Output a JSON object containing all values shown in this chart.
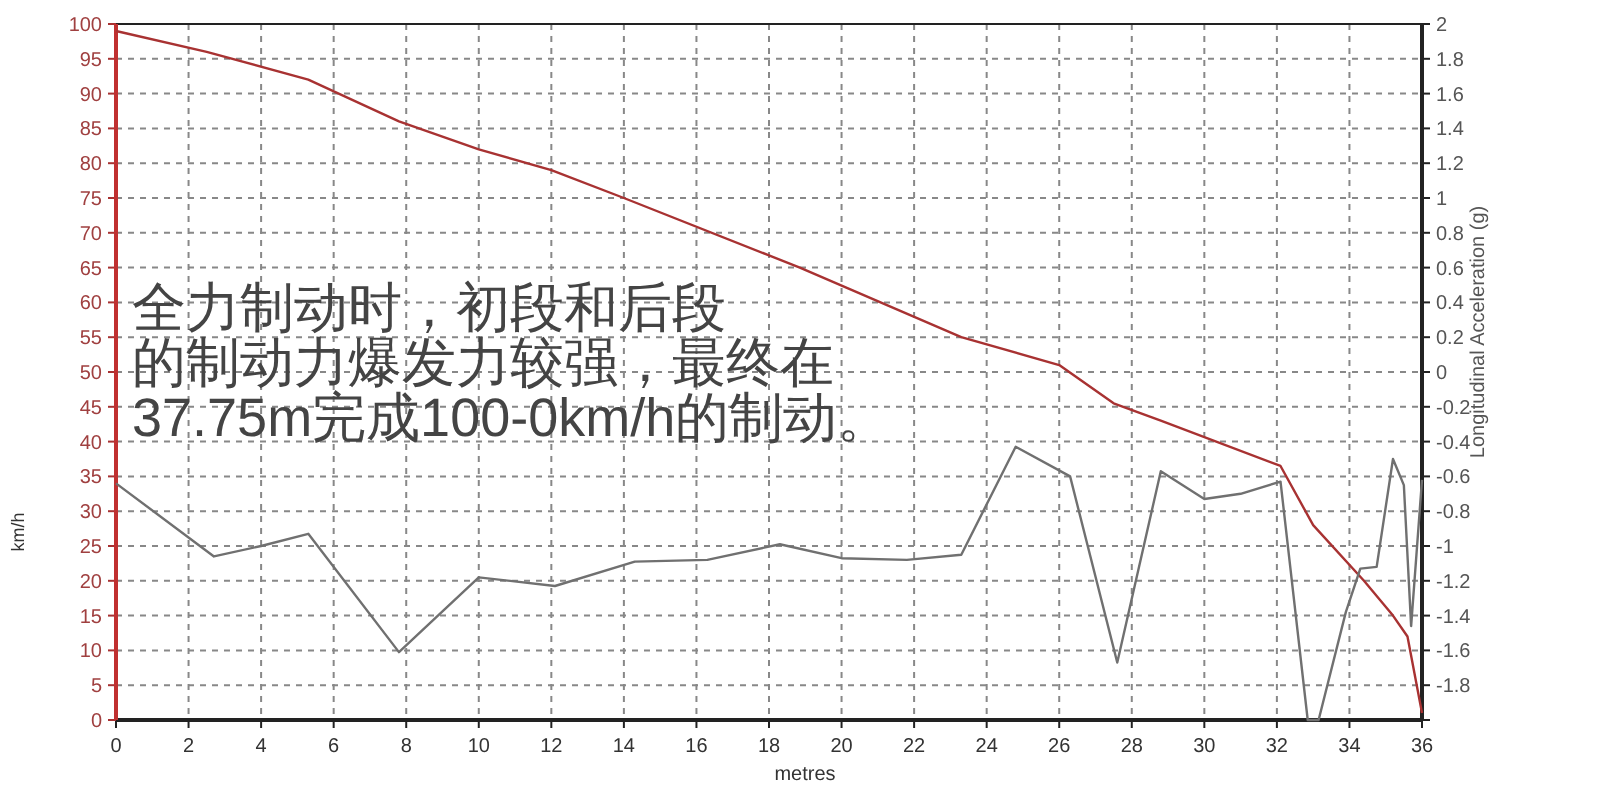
{
  "chart_data": {
    "type": "line",
    "xlabel": "metres",
    "ylabel": "km/h",
    "y2label": "Longitudinal Acceleration (g)",
    "annotations": [
      "全力制动时，初段和后段",
      "的制动力爆发力较强，最终在",
      "37.75m完成100-0km/h的制动。"
    ],
    "xlim": [
      0,
      36
    ],
    "xticks": [
      0,
      2,
      4,
      6,
      8,
      10,
      12,
      14,
      16,
      18,
      20,
      22,
      24,
      26,
      28,
      30,
      32,
      34,
      36
    ],
    "ylim": [
      0,
      100
    ],
    "yticks": [
      0,
      5,
      10,
      15,
      20,
      25,
      30,
      35,
      40,
      45,
      50,
      55,
      60,
      65,
      70,
      75,
      80,
      85,
      90,
      95,
      100
    ],
    "y2lim": [
      -2,
      2
    ],
    "y2ticks": [
      {
        "value": -2,
        "label": null
      },
      -1.8,
      -1.6,
      -1.4,
      -1.2,
      -1,
      -0.8,
      -0.6,
      -0.4,
      -0.2,
      0,
      0.2,
      0.4,
      0.6,
      0.8,
      1,
      1.2,
      1.4,
      1.6,
      1.8,
      2
    ],
    "grid": true,
    "marker": "none",
    "line_style": "solid",
    "series": [
      {
        "color": "#a83232",
        "x": [
          0,
          2.5,
          5.3,
          7.8,
          10,
          12,
          14,
          18.85,
          23.3,
          26,
          27.5,
          28.8,
          32.1,
          33,
          34.4,
          35.2,
          35.6,
          36
        ],
        "values": [
          99,
          96,
          92,
          86,
          82,
          79,
          75,
          65,
          55,
          51,
          45.5,
          43,
          36.5,
          28,
          20,
          15,
          12,
          1
        ]
      },
      {
        "color": "#707070",
        "axis": "y2",
        "x": [
          0,
          2.7,
          4,
          5.3,
          7.8,
          10,
          12.1,
          14.3,
          16.3,
          18.3,
          20,
          21.8,
          23.3,
          24.8,
          26.3,
          27.6,
          28.8,
          30,
          31,
          32.1,
          32.85,
          33.15,
          33.9,
          34.3,
          34.75,
          35.2,
          35.5,
          35.7,
          36
        ],
        "values": [
          -0.64,
          -1.06,
          -1,
          -0.93,
          -1.61,
          -1.18,
          -1.23,
          -1.09,
          -1.08,
          -0.99,
          -1.07,
          -1.08,
          -1.05,
          -0.43,
          -0.6,
          -1.67,
          -0.57,
          -0.73,
          -0.7,
          -0.63,
          -2,
          -2,
          -1.38,
          -1.13,
          -1.12,
          -0.5,
          -0.65,
          -1.46,
          -0.62
        ]
      }
    ]
  }
}
